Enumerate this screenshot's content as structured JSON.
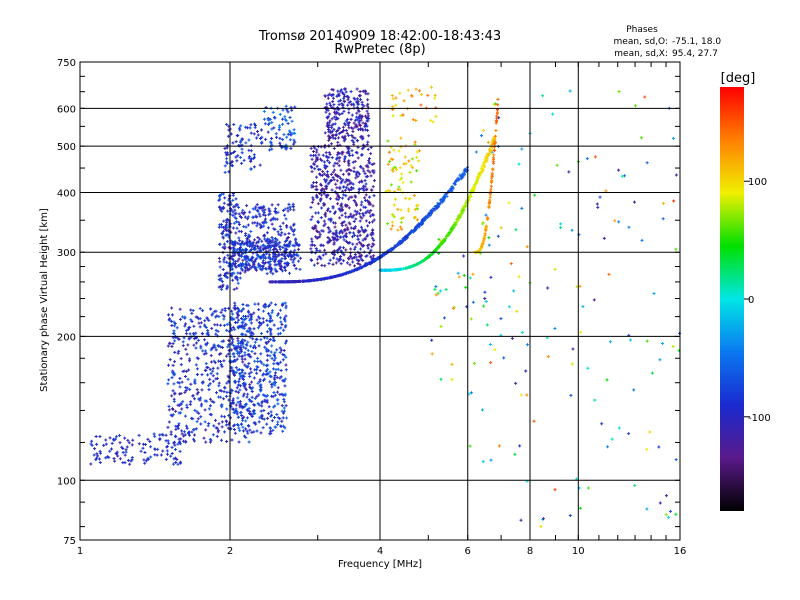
{
  "chart_data": {
    "type": "scatter",
    "title": "Tromsø 20140909 18:42:00-18:43:43",
    "subtitle": "RwPretec (8p)",
    "xlabel": "Frequency [MHz]",
    "ylabel": "Stationary phase Virtual Height [km]",
    "x_scale": "log",
    "y_scale": "log",
    "xlim": [
      1,
      16
    ],
    "ylim": [
      75,
      750
    ],
    "x_ticks": [
      1,
      2,
      4,
      6,
      8,
      10,
      16
    ],
    "y_ticks": [
      75,
      100,
      200,
      300,
      400,
      500,
      600,
      750
    ],
    "x_gridlines": [
      2,
      4,
      6,
      8,
      10
    ],
    "y_gridlines": [
      100,
      200,
      300,
      400,
      500,
      600
    ],
    "grid": true,
    "phases_title": "Phases",
    "phases_stats": [
      {
        "label": "mean, sd,O:",
        "value": "-75.1, 18.0"
      },
      {
        "label": "mean, sd,X:",
        "value": "95.4, 27.7"
      }
    ],
    "colorbar": {
      "label": "[deg]",
      "ticks": [
        100,
        0,
        -100
      ],
      "range": [
        -180,
        180
      ],
      "colors": [
        "#000000",
        "#5a1a8a",
        "#1a2ad0",
        "#0a78f0",
        "#00e6e6",
        "#00e000",
        "#f0f000",
        "#ff8000",
        "#ff0000"
      ]
    },
    "series": [
      {
        "description_none": "",
        "clusters": [
          {
            "f": [
              1.05,
              1.6
            ],
            "h": [
              108,
              125
            ],
            "phase": [
              -110,
              -70
            ],
            "n": 120
          },
          {
            "f": [
              1.5,
              2.2
            ],
            "h": [
              120,
              230
            ],
            "phase": [
              -120,
              -60
            ],
            "n": 500
          },
          {
            "f": [
              2.0,
              2.6
            ],
            "h": [
              125,
              235
            ],
            "phase": [
              -110,
              -50
            ],
            "n": 450
          },
          {
            "f": [
              1.9,
              2.1
            ],
            "h": [
              250,
              400
            ],
            "phase": [
              -120,
              -60
            ],
            "n": 180
          },
          {
            "f": [
              1.95,
              2.3
            ],
            "h": [
              440,
              560
            ],
            "phase": [
              -110,
              -60
            ],
            "n": 80
          },
          {
            "f": [
              2.1,
              2.7
            ],
            "h": [
              270,
              380
            ],
            "phase": [
              -120,
              -60
            ],
            "n": 250
          },
          {
            "f": [
              2.3,
              2.7
            ],
            "h": [
              480,
              610
            ],
            "phase": [
              -100,
              -40
            ],
            "n": 80
          },
          {
            "f": [
              2.0,
              2.8
            ],
            "h": [
              275,
              320
            ],
            "phase": [
              -120,
              -60
            ],
            "n": 250
          },
          {
            "f": [
              2.9,
              3.9
            ],
            "h": [
              280,
              500
            ],
            "phase": [
              -140,
              -80
            ],
            "n": 600
          },
          {
            "f": [
              3.1,
              3.8
            ],
            "h": [
              500,
              660
            ],
            "phase": [
              -140,
              -80
            ],
            "n": 250
          },
          {
            "f": [
              4.1,
              4.8
            ],
            "h": [
              330,
              520
            ],
            "phase": [
              60,
              140
            ],
            "n": 80
          },
          {
            "f": [
              4.2,
              5.2
            ],
            "h": [
              560,
              670
            ],
            "phase": [
              80,
              150
            ],
            "n": 30
          },
          {
            "f": [
              5.0,
              6.0
            ],
            "h": [
              160,
              320
            ],
            "phase": [
              -100,
              160
            ],
            "n": 25
          },
          {
            "f": [
              6.0,
              7.0
            ],
            "h": [
              100,
              640
            ],
            "phase": [
              -120,
              160
            ],
            "n": 40
          },
          {
            "f": [
              7.0,
              16.0
            ],
            "h": [
              80,
              660
            ],
            "phase": [
              -130,
              170
            ],
            "n": 120
          }
        ],
        "o_trace": {
          "f": [
            2.4,
            6.0
          ],
          "h_start": 260,
          "h_end": 450,
          "phase_start": -110,
          "phase_end": -60,
          "n": 550
        },
        "x_trace": {
          "f": [
            4.0,
            6.8
          ],
          "h_start": 275,
          "h_end": 520,
          "phase_start": -20,
          "phase_end": 110,
          "n": 450
        },
        "upper_trace": {
          "f": [
            6.2,
            6.9
          ],
          "h_start": 300,
          "h_end": 620,
          "phase_start": 100,
          "phase_end": 150,
          "n": 120
        }
      }
    ]
  }
}
